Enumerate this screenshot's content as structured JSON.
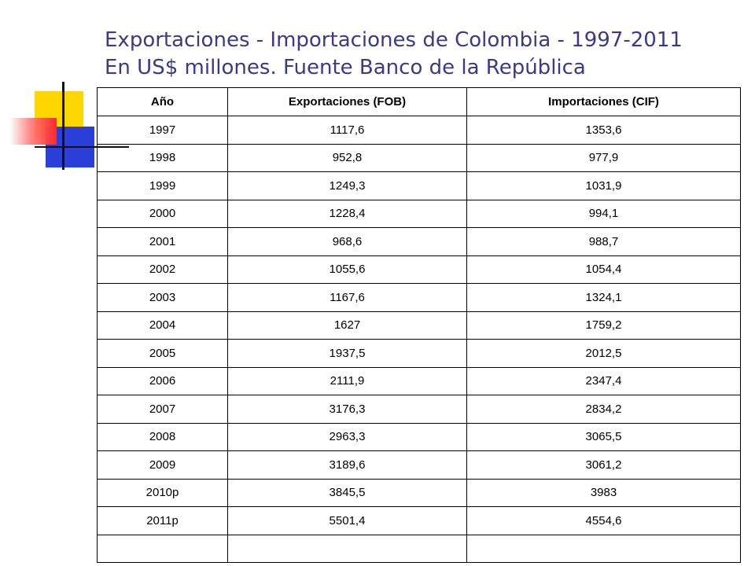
{
  "title": {
    "line1": "Exportaciones - Importaciones de Colombia - 1997-2011",
    "line2": "En US$ millones. Fuente Banco de la República"
  },
  "table": {
    "headers": [
      "Año",
      "Exportaciones (FOB)",
      "Importaciones (CIF)"
    ],
    "rows": [
      [
        "1997",
        "1117,6",
        "1353,6"
      ],
      [
        "1998",
        "952,8",
        "977,9"
      ],
      [
        "1999",
        "1249,3",
        "1031,9"
      ],
      [
        "2000",
        "1228,4",
        "994,1"
      ],
      [
        "2001",
        "968,6",
        "988,7"
      ],
      [
        "2002",
        "1055,6",
        "1054,4"
      ],
      [
        "2003",
        "1167,6",
        "1324,1"
      ],
      [
        "2004",
        "1627",
        "1759,2"
      ],
      [
        "2005",
        "1937,5",
        "2012,5"
      ],
      [
        "2006",
        "2111,9",
        "2347,4"
      ],
      [
        "2007",
        "3176,3",
        "2834,2"
      ],
      [
        "2008",
        "2963,3",
        "3065,5"
      ],
      [
        "2009",
        "3189,6",
        "3061,2"
      ],
      [
        "2010p",
        "3845,5",
        "3983"
      ],
      [
        "2011p",
        "5501,4",
        "4554,6"
      ],
      [
        "",
        "",
        ""
      ]
    ]
  },
  "colors": {
    "title": "#3a3a88",
    "deco_yellow": "#ffd700",
    "deco_blue": "#2b3fd9",
    "deco_red": "#ff2a2a"
  }
}
